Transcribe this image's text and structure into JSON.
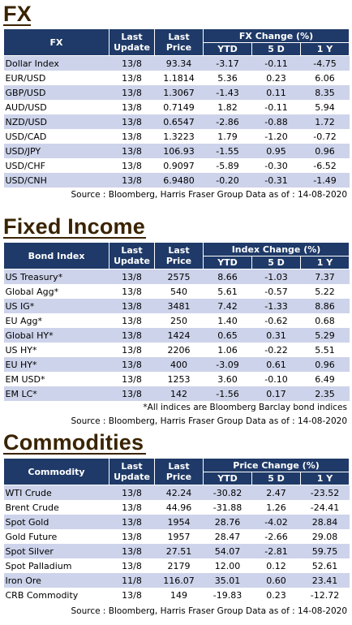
{
  "fx": {
    "title": "FX",
    "headers": {
      "name": "FX",
      "last_update": "Last Update",
      "last_price": "Last Price",
      "group": "FX Change (%)",
      "ytd": "YTD",
      "d5": "5 D",
      "y1": "1 Y"
    },
    "rows": [
      [
        "Dollar Index",
        "13/8",
        "93.34",
        "-3.17",
        "-0.11",
        "-4.75"
      ],
      [
        "EUR/USD",
        "13/8",
        "1.1814",
        "5.36",
        "0.23",
        "6.06"
      ],
      [
        "GBP/USD",
        "13/8",
        "1.3067",
        "-1.43",
        "0.11",
        "8.35"
      ],
      [
        "AUD/USD",
        "13/8",
        "0.7149",
        "1.82",
        "-0.11",
        "5.94"
      ],
      [
        "NZD/USD",
        "13/8",
        "0.6547",
        "-2.86",
        "-0.88",
        "1.72"
      ],
      [
        "USD/CAD",
        "13/8",
        "1.3223",
        "1.79",
        "-1.20",
        "-0.72"
      ],
      [
        "USD/JPY",
        "13/8",
        "106.93",
        "-1.55",
        "0.95",
        "0.96"
      ],
      [
        "USD/CHF",
        "13/8",
        "0.9097",
        "-5.89",
        "-0.30",
        "-6.52"
      ],
      [
        "USD/CNH",
        "13/8",
        "6.9480",
        "-0.20",
        "-0.31",
        "-1.49"
      ]
    ],
    "source": "Source : Bloomberg, Harris Fraser Group Data as of : 14-08-2020"
  },
  "fixed_income": {
    "title": "Fixed Income",
    "headers": {
      "name": "Bond Index",
      "last_update": "Last Update",
      "last_price": "Last Price",
      "group": "Index Change (%)",
      "ytd": "YTD",
      "d5": "5 D",
      "y1": "1 Y"
    },
    "rows": [
      [
        "US Treasury*",
        "13/8",
        "2575",
        "8.66",
        "-1.03",
        "7.37"
      ],
      [
        "Global Agg*",
        "13/8",
        "540",
        "5.61",
        "-0.57",
        "5.22"
      ],
      [
        "US IG*",
        "13/8",
        "3481",
        "7.42",
        "-1.33",
        "8.86"
      ],
      [
        "EU Agg*",
        "13/8",
        "250",
        "1.40",
        "-0.62",
        "0.68"
      ],
      [
        "Global HY*",
        "13/8",
        "1424",
        "0.65",
        "0.31",
        "5.29"
      ],
      [
        "US HY*",
        "13/8",
        "2206",
        "1.06",
        "-0.22",
        "5.51"
      ],
      [
        "EU HY*",
        "13/8",
        "400",
        "-3.09",
        "0.61",
        "0.96"
      ],
      [
        "EM USD*",
        "13/8",
        "1253",
        "3.60",
        "-0.10",
        "6.49"
      ],
      [
        "EM LC*",
        "13/8",
        "142",
        "-1.56",
        "0.17",
        "2.35"
      ]
    ],
    "note": "*All indices are Bloomberg Barclay bond indices",
    "source": "Source : Bloomberg, Harris Fraser Group Data as of : 14-08-2020"
  },
  "commodities": {
    "title": "Commodities",
    "headers": {
      "name": "Commodity",
      "last_update": "Last Update",
      "last_price": "Last Price",
      "group": "Price Change (%)",
      "ytd": "YTD",
      "d5": "5 D",
      "y1": "1 Y"
    },
    "rows": [
      [
        "WTI Crude",
        "13/8",
        "42.24",
        "-30.82",
        "2.47",
        "-23.52"
      ],
      [
        "Brent Crude",
        "13/8",
        "44.96",
        "-31.88",
        "1.26",
        "-24.41"
      ],
      [
        "Spot Gold",
        "13/8",
        "1954",
        "28.76",
        "-4.02",
        "28.84"
      ],
      [
        "Gold Future",
        "13/8",
        "1957",
        "28.47",
        "-2.66",
        "29.08"
      ],
      [
        "Spot Silver",
        "13/8",
        "27.51",
        "54.07",
        "-2.81",
        "59.75"
      ],
      [
        "Spot Palladium",
        "13/8",
        "2179",
        "12.00",
        "0.12",
        "52.61"
      ],
      [
        "Iron Ore",
        "11/8",
        "116.07",
        "35.01",
        "0.60",
        "23.41"
      ],
      [
        "CRB Commodity",
        "13/8",
        "149",
        "-19.83",
        "0.23",
        "-12.72"
      ]
    ],
    "source": "Source : Bloomberg, Harris Fraser Group Data as of : 14-08-2020"
  },
  "colors": {
    "header_bg": "#1f3a68",
    "stripe": "#cdd3ea",
    "title": "#3a2300"
  }
}
